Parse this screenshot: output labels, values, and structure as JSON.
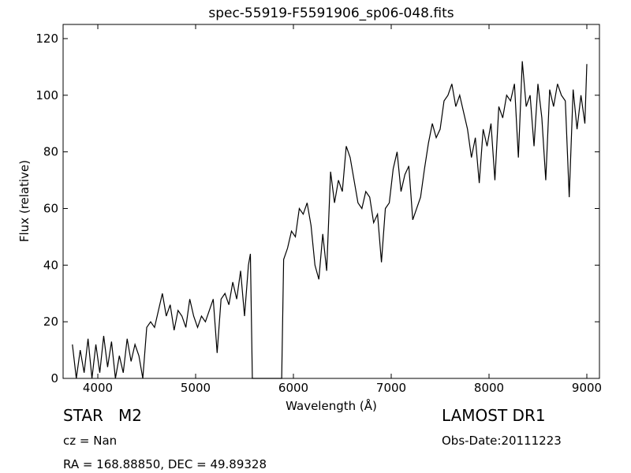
{
  "chart_data": {
    "type": "line",
    "title": "spec-55919-F5591906_sp06-048.fits",
    "x_label": "Wavelength (Å)",
    "y_label": "Flux (relative)",
    "xlim": [
      3645,
      9129
    ],
    "ylim": [
      0,
      125
    ],
    "xticks": [
      4000,
      5000,
      6000,
      7000,
      8000,
      9000
    ],
    "yticks": [
      0,
      20,
      40,
      60,
      80,
      100,
      120
    ],
    "color": "#000000",
    "x": [
      3740,
      3780,
      3820,
      3860,
      3900,
      3940,
      3980,
      4020,
      4060,
      4100,
      4140,
      4180,
      4220,
      4260,
      4300,
      4340,
      4380,
      4420,
      4460,
      4500,
      4540,
      4580,
      4620,
      4660,
      4700,
      4740,
      4780,
      4820,
      4860,
      4900,
      4940,
      4980,
      5020,
      5060,
      5100,
      5140,
      5180,
      5220,
      5260,
      5300,
      5340,
      5380,
      5420,
      5460,
      5500,
      5540,
      5560,
      5580,
      5880,
      5900,
      5940,
      5980,
      6020,
      6060,
      6100,
      6140,
      6180,
      6220,
      6260,
      6300,
      6340,
      6380,
      6420,
      6460,
      6500,
      6540,
      6580,
      6620,
      6660,
      6700,
      6740,
      6780,
      6820,
      6860,
      6900,
      6940,
      6980,
      7020,
      7060,
      7100,
      7140,
      7180,
      7220,
      7260,
      7300,
      7340,
      7380,
      7420,
      7460,
      7500,
      7540,
      7580,
      7620,
      7660,
      7700,
      7740,
      7780,
      7820,
      7860,
      7900,
      7940,
      7980,
      8020,
      8060,
      8100,
      8140,
      8180,
      8220,
      8260,
      8300,
      8340,
      8380,
      8420,
      8460,
      8500,
      8540,
      8580,
      8620,
      8660,
      8700,
      8740,
      8780,
      8820,
      8860,
      8900,
      8940,
      8980,
      9000
    ],
    "values": [
      12,
      0,
      10,
      2,
      14,
      0,
      12,
      2,
      15,
      4,
      13,
      0,
      8,
      2,
      14,
      6,
      12,
      8,
      0,
      18,
      20,
      18,
      24,
      30,
      22,
      26,
      17,
      24,
      22,
      18,
      28,
      22,
      18,
      22,
      20,
      24,
      28,
      9,
      28,
      30,
      26,
      34,
      28,
      38,
      22,
      40,
      44,
      0,
      0,
      42,
      46,
      52,
      50,
      60,
      58,
      62,
      54,
      40,
      35,
      51,
      38,
      73,
      62,
      70,
      66,
      82,
      78,
      70,
      62,
      60,
      66,
      64,
      55,
      58,
      41,
      60,
      62,
      74,
      80,
      66,
      72,
      75,
      56,
      60,
      64,
      74,
      83,
      90,
      85,
      88,
      98,
      100,
      104,
      96,
      100,
      94,
      88,
      78,
      85,
      69,
      88,
      82,
      90,
      70,
      96,
      92,
      100,
      98,
      104,
      78,
      112,
      96,
      100,
      82,
      104,
      92,
      70,
      102,
      96,
      104,
      100,
      98,
      64,
      102,
      88,
      100,
      90,
      111
    ],
    "annotations": [
      "STAR   M2",
      "cz = Nan",
      "RA = 168.88850, DEC = 49.89328",
      "LAMOST DR1",
      "Obs-Date:20111223"
    ]
  }
}
